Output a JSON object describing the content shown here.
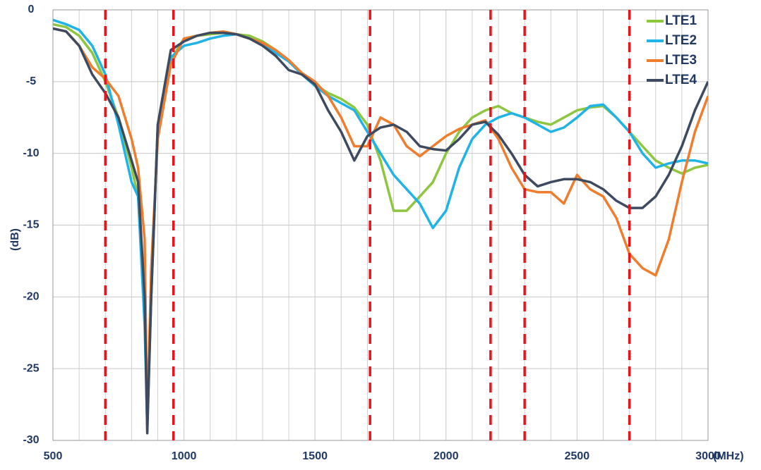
{
  "chart_data": {
    "type": "line",
    "xlabel": "(MHz)",
    "ylabel": "(dB)",
    "x": [
      500,
      550,
      600,
      650,
      700,
      750,
      800,
      825,
      850,
      860,
      875,
      900,
      950,
      1000,
      1050,
      1100,
      1150,
      1200,
      1250,
      1300,
      1350,
      1400,
      1450,
      1500,
      1550,
      1600,
      1650,
      1700,
      1750,
      1800,
      1850,
      1900,
      1950,
      2000,
      2050,
      2100,
      2150,
      2200,
      2250,
      2300,
      2350,
      2400,
      2450,
      2500,
      2550,
      2600,
      2650,
      2700,
      2750,
      2800,
      2850,
      2900,
      2950,
      3000
    ],
    "series": [
      {
        "name": "LTE1",
        "color": "#8dc63f",
        "values": [
          -1.0,
          -1.2,
          -1.8,
          -3.0,
          -5.0,
          -7.5,
          -11,
          -13,
          -20,
          -28,
          -20,
          -8,
          -3.5,
          -2.0,
          -1.8,
          -1.7,
          -1.6,
          -1.7,
          -1.8,
          -2.2,
          -2.8,
          -3.5,
          -4.5,
          -5.2,
          -5.8,
          -6.2,
          -6.8,
          -8,
          -10.5,
          -14,
          -14,
          -13,
          -12,
          -10,
          -8.5,
          -7.5,
          -7,
          -6.7,
          -7.2,
          -7.5,
          -7.8,
          -8.0,
          -7.5,
          -7,
          -6.8,
          -6.7,
          -7.5,
          -8.5,
          -9.5,
          -10.5,
          -11,
          -11.4,
          -11,
          -10.8
        ]
      },
      {
        "name": "LTE2",
        "color": "#1fb3e8",
        "values": [
          -0.7,
          -1.0,
          -1.4,
          -2.5,
          -4.5,
          -8,
          -12,
          -13,
          -22,
          -29,
          -20,
          -8,
          -3.3,
          -2.5,
          -2.3,
          -2.0,
          -1.8,
          -1.7,
          -2.0,
          -2.4,
          -3.0,
          -3.6,
          -4.5,
          -5.3,
          -6.0,
          -6.5,
          -7.0,
          -8.5,
          -10,
          -11.5,
          -12.5,
          -13.5,
          -15.2,
          -14,
          -11,
          -9,
          -8,
          -7.5,
          -7.2,
          -7.5,
          -8,
          -8.5,
          -8.2,
          -7.5,
          -6.7,
          -6.6,
          -7.5,
          -8.5,
          -10,
          -11,
          -10.7,
          -10.5,
          -10.5,
          -10.7
        ]
      },
      {
        "name": "LTE3",
        "color": "#ef7d2d",
        "values": [
          -1.3,
          -1.5,
          -2.5,
          -4.0,
          -4.8,
          -6,
          -9,
          -11,
          -16,
          -29,
          -18,
          -9,
          -3.8,
          -2.0,
          -1.8,
          -1.6,
          -1.5,
          -1.7,
          -2.0,
          -2.3,
          -2.8,
          -3.5,
          -4.4,
          -5,
          -6,
          -7.5,
          -9.5,
          -9.5,
          -7.5,
          -8,
          -9.5,
          -10.2,
          -9.5,
          -8.8,
          -8.3,
          -8,
          -7.7,
          -9,
          -11,
          -12.5,
          -12.7,
          -12.7,
          -13.5,
          -11.5,
          -12.5,
          -13,
          -14.5,
          -17,
          -18,
          -18.5,
          -16,
          -12,
          -8.5,
          -6
        ]
      },
      {
        "name": "LTE4",
        "color": "#3d4a5f",
        "values": [
          -1.3,
          -1.5,
          -2.5,
          -4.5,
          -5.8,
          -7.5,
          -10.5,
          -12,
          -20,
          -29.5,
          -20,
          -8,
          -2.8,
          -2.2,
          -1.8,
          -1.6,
          -1.6,
          -1.7,
          -2.0,
          -2.5,
          -3.2,
          -4.2,
          -4.5,
          -5.2,
          -7,
          -8.5,
          -10.5,
          -8.8,
          -8.2,
          -8,
          -8.5,
          -9.5,
          -9.7,
          -9.8,
          -9,
          -8,
          -7.8,
          -8.7,
          -10,
          -11.5,
          -12.3,
          -12,
          -11.8,
          -11.8,
          -12,
          -12.5,
          -13.3,
          -13.8,
          -13.8,
          -13,
          -11.5,
          -9.5,
          -7,
          -5
        ]
      }
    ],
    "vlines": [
      700,
      960,
      1710,
      2170,
      2300,
      2700
    ],
    "vline_color": "#e8141b",
    "xlim": [
      500,
      3000
    ],
    "ylim": [
      -30,
      0
    ],
    "xticks": [
      500,
      1000,
      1500,
      2000,
      2500,
      3000
    ],
    "yticks": [
      -30,
      -25,
      -20,
      -15,
      -10,
      -5,
      0
    ],
    "grid": true,
    "legend": "top-right"
  }
}
